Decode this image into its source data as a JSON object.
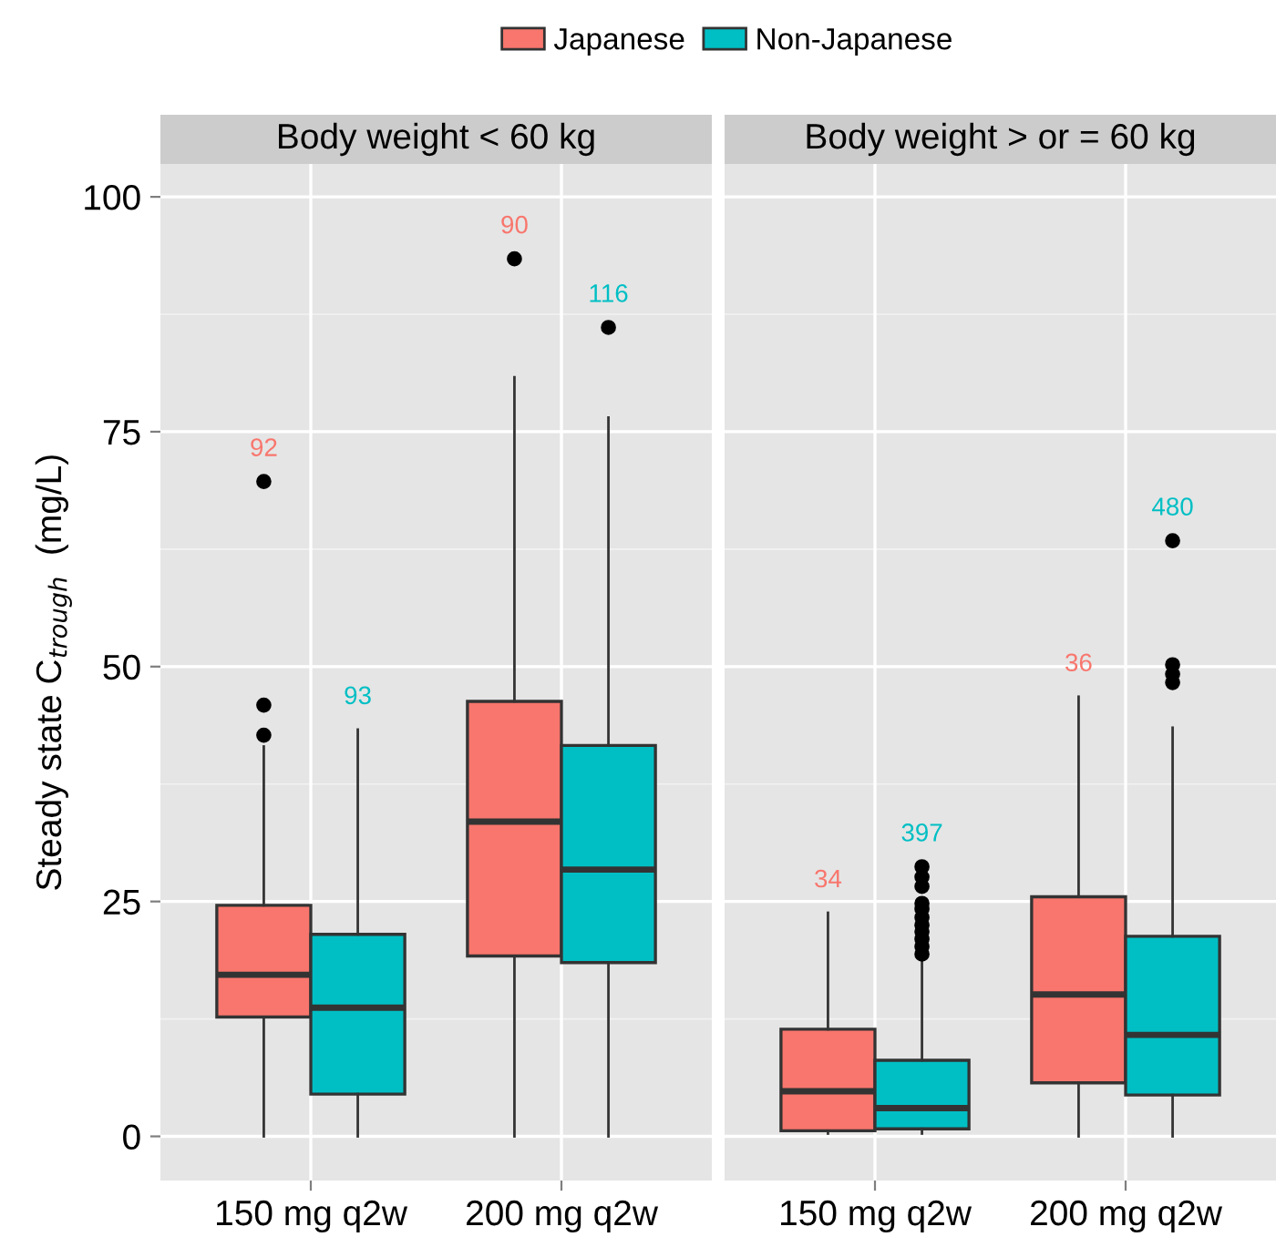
{
  "chart_data": [
    {
      "type": "box",
      "title": "Body weight < 60 kg",
      "ylabel": "Steady state C$_{trough}$  (mg/L)",
      "categories": [
        "150 mg q2w",
        "200 mg q2w"
      ],
      "ylim": [
        -4.7,
        103.5
      ],
      "yticks": [
        0,
        25,
        50,
        75,
        100
      ],
      "grid": true,
      "legend": "top",
      "series": [
        {
          "name": "Japanese",
          "color": "#f8766d",
          "value_labels": [
            "92",
            "90"
          ],
          "boxes": [
            {
              "low": 0,
              "q1": 12.7,
              "median": 17.2,
              "q3": 24.6,
              "high": 41.5,
              "outliers": [
                42.7,
                45.9,
                69.7
              ]
            },
            {
              "low": 0,
              "q1": 19.2,
              "median": 33.5,
              "q3": 46.3,
              "high": 80.8,
              "outliers": [
                93.4
              ]
            }
          ]
        },
        {
          "name": "Non-Japanese",
          "color": "#00bfc4",
          "value_labels": [
            "93",
            "116"
          ],
          "boxes": [
            {
              "low": 0,
              "q1": 4.5,
              "median": 13.7,
              "q3": 21.5,
              "high": 43.3
            },
            {
              "low": 0,
              "q1": 18.5,
              "median": 28.4,
              "q3": 41.6,
              "high": 76.5,
              "outliers": [
                86.1
              ]
            }
          ]
        }
      ]
    },
    {
      "type": "box",
      "title": "Body weight > or = 60 kg",
      "categories": [
        "150 mg q2w",
        "200 mg q2w"
      ],
      "ylim": [
        -4.7,
        103.5
      ],
      "yticks": [
        0,
        25,
        50,
        75,
        100
      ],
      "tick_labels": "x",
      "grid": true,
      "series": [
        {
          "color": "#f8766d",
          "value_labels": [
            "34",
            "36"
          ],
          "boxes": [
            {
              "low": 0.3,
              "q1": 0.6,
              "median": 4.8,
              "q3": 11.4,
              "high": 23.8
            },
            {
              "low": 0,
              "q1": 5.7,
              "median": 15.1,
              "q3": 25.5,
              "high": 46.8
            }
          ]
        },
        {
          "color": "#00bfc4",
          "value_labels": [
            "397",
            "480"
          ],
          "boxes": [
            {
              "low": 0.3,
              "q1": 0.8,
              "median": 3.0,
              "q3": 8.1,
              "high": 18.7,
              "outliers": [
                19.4,
                20.2,
                21.0,
                21.8,
                22.5,
                23.3,
                24.2,
                24.8,
                26.6,
                27.6,
                28.7
              ]
            },
            {
              "low": 0,
              "q1": 4.4,
              "median": 10.8,
              "q3": 21.3,
              "high": 43.5,
              "outliers": [
                48.3,
                49.2,
                50.2,
                63.4
              ]
            }
          ]
        }
      ]
    }
  ]
}
